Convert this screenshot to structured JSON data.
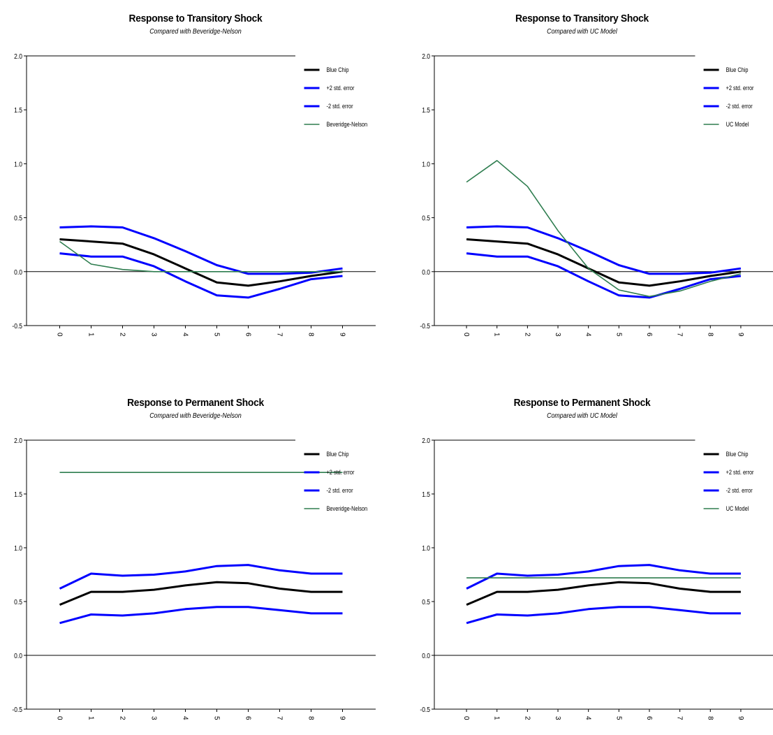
{
  "chart_data": [
    {
      "type": "line",
      "title": "Response to Transitory Shock",
      "subtitle": "Compared with Beveridge-Nelson",
      "xlabel": "",
      "ylabel": "",
      "x": [
        0,
        1,
        2,
        3,
        4,
        5,
        6,
        7,
        8,
        9
      ],
      "ylim": [
        -0.5,
        2.0
      ],
      "yticks": [
        "2.0",
        "1.5",
        "1.0",
        "0.5",
        "0.0",
        "-0.5"
      ],
      "xticks": [
        "0",
        "1",
        "2",
        "3",
        "4",
        "5",
        "6",
        "7",
        "8",
        "9"
      ],
      "legend": "top-right",
      "series": [
        {
          "name": "Blue Chip",
          "color": "#000000",
          "width": 3,
          "values": [
            0.3,
            0.28,
            0.26,
            0.16,
            0.03,
            -0.1,
            -0.13,
            -0.09,
            -0.04,
            0.0
          ]
        },
        {
          "name": "+2 std. error",
          "color": "#0000ff",
          "width": 3,
          "values": [
            0.41,
            0.42,
            0.41,
            0.31,
            0.19,
            0.06,
            -0.02,
            -0.02,
            -0.01,
            0.03
          ]
        },
        {
          "name": "-2 std. error",
          "color": "#0000ff",
          "width": 3,
          "values": [
            0.17,
            0.14,
            0.14,
            0.05,
            -0.09,
            -0.22,
            -0.24,
            -0.16,
            -0.07,
            -0.04
          ]
        },
        {
          "name": "Beveridge-Nelson",
          "color": "#2e7d4f",
          "width": 1.6,
          "values": [
            0.28,
            0.07,
            0.02,
            0.0,
            0.0,
            0.0,
            0.0,
            0.0,
            0.0,
            0.0
          ]
        }
      ]
    },
    {
      "type": "line",
      "title": "Response to Transitory Shock",
      "subtitle": "Compared with UC Model",
      "xlabel": "",
      "ylabel": "",
      "x": [
        0,
        1,
        2,
        3,
        4,
        5,
        6,
        7,
        8,
        9
      ],
      "ylim": [
        -0.5,
        2.0
      ],
      "yticks": [
        "2.0",
        "1.5",
        "1.0",
        "0.5",
        "0.0",
        "-0.5"
      ],
      "xticks": [
        "0",
        "1",
        "2",
        "3",
        "4",
        "5",
        "6",
        "7",
        "8",
        "9"
      ],
      "legend": "top-right",
      "series": [
        {
          "name": "Blue Chip",
          "color": "#000000",
          "width": 3,
          "values": [
            0.3,
            0.28,
            0.26,
            0.16,
            0.03,
            -0.1,
            -0.13,
            -0.09,
            -0.04,
            0.0
          ]
        },
        {
          "name": "+2 std. error",
          "color": "#0000ff",
          "width": 3,
          "values": [
            0.41,
            0.42,
            0.41,
            0.31,
            0.19,
            0.06,
            -0.02,
            -0.02,
            -0.01,
            0.03
          ]
        },
        {
          "name": "-2 std. error",
          "color": "#0000ff",
          "width": 3,
          "values": [
            0.17,
            0.14,
            0.14,
            0.05,
            -0.09,
            -0.22,
            -0.24,
            -0.16,
            -0.07,
            -0.04
          ]
        },
        {
          "name": "UC Model",
          "color": "#2e7d4f",
          "width": 1.6,
          "values": [
            0.83,
            1.03,
            0.79,
            0.38,
            0.03,
            -0.17,
            -0.23,
            -0.18,
            -0.09,
            -0.02
          ]
        }
      ]
    },
    {
      "type": "line",
      "title": "Response to Permanent Shock",
      "subtitle": "Compared with Beveridge-Nelson",
      "xlabel": "",
      "ylabel": "",
      "x": [
        0,
        1,
        2,
        3,
        4,
        5,
        6,
        7,
        8,
        9
      ],
      "ylim": [
        -0.5,
        2.0
      ],
      "yticks": [
        "2.0",
        "1.5",
        "1.0",
        "0.5",
        "0.0",
        "-0.5"
      ],
      "xticks": [
        "0",
        "1",
        "2",
        "3",
        "4",
        "5",
        "6",
        "7",
        "8",
        "9"
      ],
      "legend": "top-right",
      "series": [
        {
          "name": "Blue Chip",
          "color": "#000000",
          "width": 3,
          "values": [
            0.47,
            0.59,
            0.59,
            0.61,
            0.65,
            0.68,
            0.67,
            0.62,
            0.59,
            0.59
          ]
        },
        {
          "name": "+2 std. error",
          "color": "#0000ff",
          "width": 3,
          "values": [
            0.62,
            0.76,
            0.74,
            0.75,
            0.78,
            0.83,
            0.84,
            0.79,
            0.76,
            0.76
          ]
        },
        {
          "name": "-2 std. error",
          "color": "#0000ff",
          "width": 3,
          "values": [
            0.3,
            0.38,
            0.37,
            0.39,
            0.43,
            0.45,
            0.45,
            0.42,
            0.39,
            0.39
          ]
        },
        {
          "name": "Beveridge-Nelson",
          "color": "#2e7d4f",
          "width": 1.6,
          "values": [
            1.7,
            1.7,
            1.7,
            1.7,
            1.7,
            1.7,
            1.7,
            1.7,
            1.7,
            1.7
          ]
        }
      ]
    },
    {
      "type": "line",
      "title": "Response to Permanent Shock",
      "subtitle": "Compared with UC Model",
      "xlabel": "",
      "ylabel": "",
      "x": [
        0,
        1,
        2,
        3,
        4,
        5,
        6,
        7,
        8,
        9
      ],
      "ylim": [
        -0.5,
        2.0
      ],
      "yticks": [
        "2.0",
        "1.5",
        "1.0",
        "0.5",
        "0.0",
        "-0.5"
      ],
      "xticks": [
        "0",
        "1",
        "2",
        "3",
        "4",
        "5",
        "6",
        "7",
        "8",
        "9"
      ],
      "legend": "top-right",
      "series": [
        {
          "name": "Blue Chip",
          "color": "#000000",
          "width": 3,
          "values": [
            0.47,
            0.59,
            0.59,
            0.61,
            0.65,
            0.68,
            0.67,
            0.62,
            0.59,
            0.59
          ]
        },
        {
          "name": "+2 std. error",
          "color": "#0000ff",
          "width": 3,
          "values": [
            0.62,
            0.76,
            0.74,
            0.75,
            0.78,
            0.83,
            0.84,
            0.79,
            0.76,
            0.76
          ]
        },
        {
          "name": "-2 std. error",
          "color": "#0000ff",
          "width": 3,
          "values": [
            0.3,
            0.38,
            0.37,
            0.39,
            0.43,
            0.45,
            0.45,
            0.42,
            0.39,
            0.39
          ]
        },
        {
          "name": "UC Model",
          "color": "#2e7d4f",
          "width": 1.6,
          "values": [
            0.72,
            0.72,
            0.72,
            0.72,
            0.72,
            0.72,
            0.72,
            0.72,
            0.72,
            0.72
          ]
        }
      ]
    }
  ]
}
